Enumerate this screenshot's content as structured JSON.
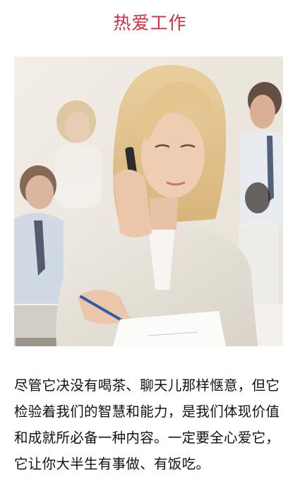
{
  "page": {
    "title": "热爱工作",
    "title_color": "#d62c43"
  },
  "photo": {
    "icon": "office-woman-on-phone-photo"
  },
  "article": {
    "paragraph": "尽管它决没有喝茶、聊天儿那样惬意，但它检验着我们的智慧和能力，是我们体现价值和成就所必备一种内容。一定要全心爱它，它让你大半生有事做、有饭吃。"
  }
}
